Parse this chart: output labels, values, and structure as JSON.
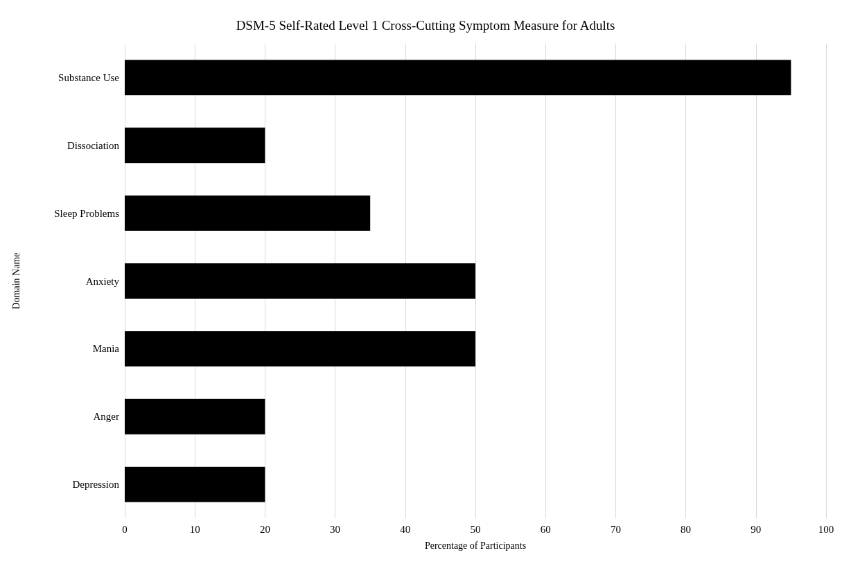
{
  "chart_data": {
    "type": "bar",
    "orientation": "horizontal",
    "title": "DSM-5 Self-Rated Level 1 Cross-Cutting Symptom Measure for Adults",
    "xlabel": "Percentage of Participants",
    "ylabel": "Domain Name",
    "categories": [
      "Substance Use",
      "Dissociation",
      "Sleep Problems",
      "Anxiety",
      "Mania",
      "Anger",
      "Depression"
    ],
    "values": [
      95,
      20,
      35,
      50,
      50,
      20,
      20
    ],
    "color": "#000000",
    "xlim": [
      0,
      100
    ],
    "xticks": [
      0,
      10,
      20,
      30,
      40,
      50,
      60,
      70,
      80,
      90,
      100
    ],
    "grid": "x"
  }
}
